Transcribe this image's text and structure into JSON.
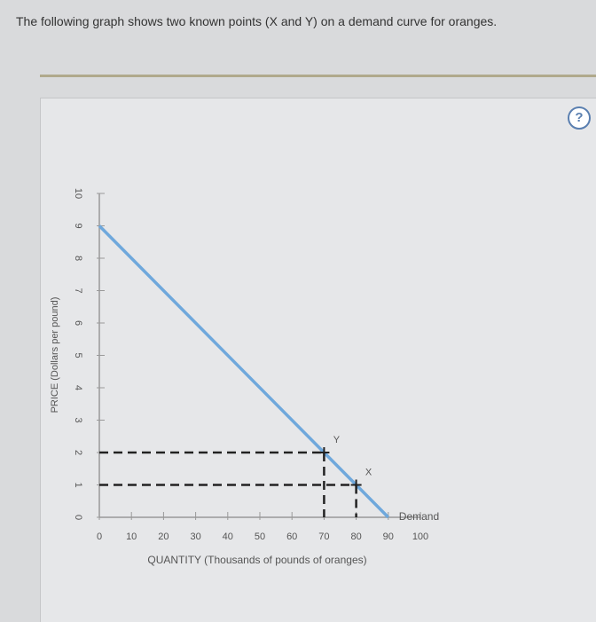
{
  "header": {
    "title": "The following graph shows two known points (X and Y) on a demand curve for oranges.",
    "help": "?"
  },
  "chart_data": {
    "type": "line",
    "x_label": "QUANTITY (Thousands of pounds of oranges)",
    "y_label": "PRICE (Dollars per pound)",
    "x": [
      0,
      70,
      80,
      90
    ],
    "series": [
      {
        "name": "Demand",
        "color": "#6fa8dc",
        "values": [
          9,
          2,
          1,
          0
        ]
      }
    ],
    "points": [
      {
        "label": "Y",
        "x": 70,
        "y": 2
      },
      {
        "label": "X",
        "x": 80,
        "y": 1
      }
    ],
    "xlim": [
      0,
      100
    ],
    "xticks": [
      0,
      10,
      20,
      30,
      40,
      50,
      60,
      70,
      80,
      90,
      100
    ],
    "ylim": [
      0,
      10
    ],
    "yticks": [
      0,
      1,
      2,
      3,
      4,
      5,
      6,
      7,
      8,
      9,
      10
    ]
  }
}
